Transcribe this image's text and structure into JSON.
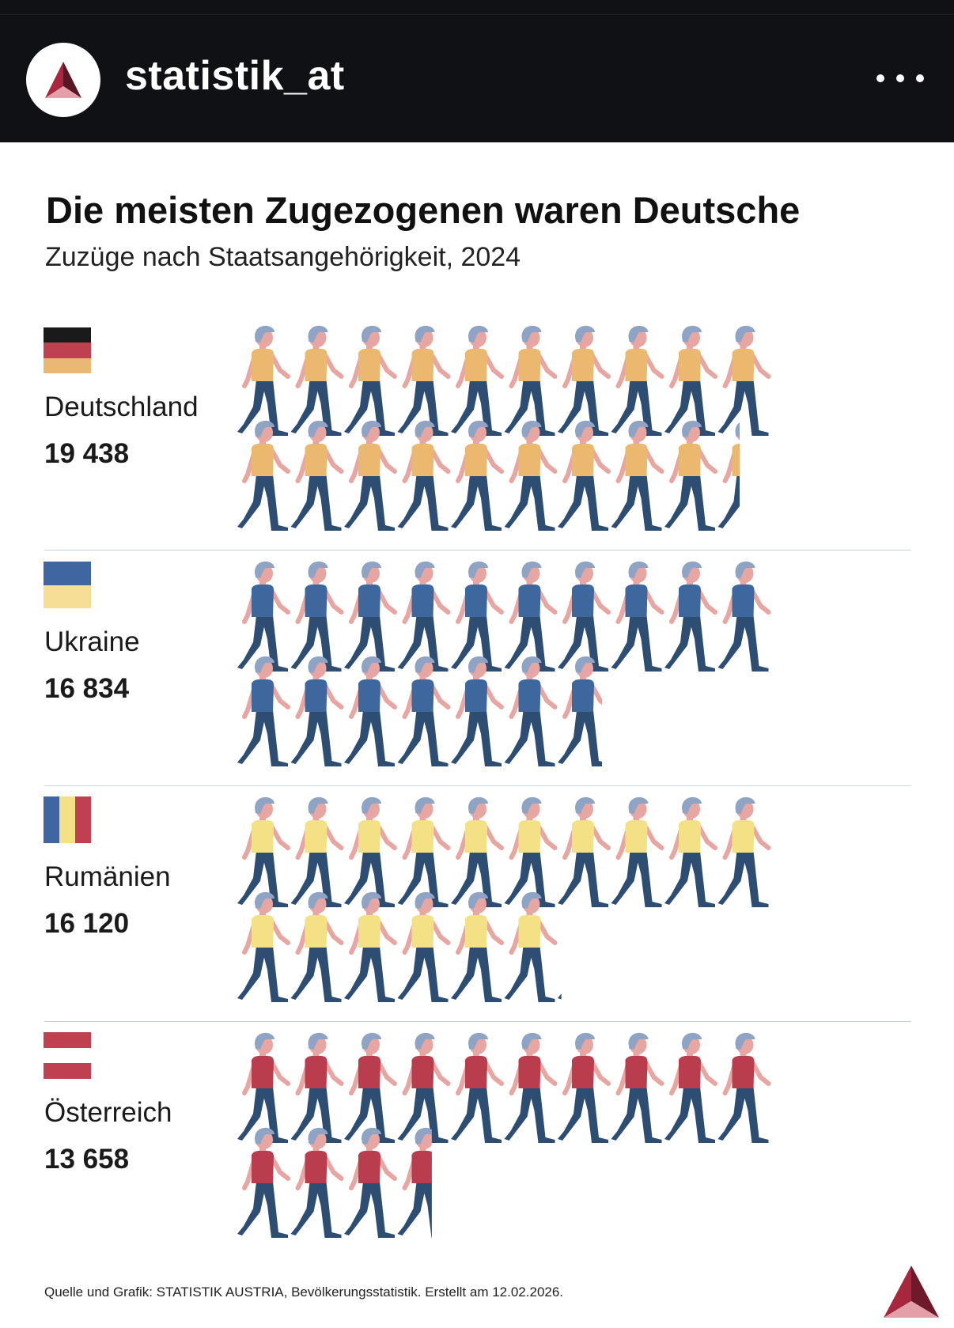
{
  "header": {
    "username": "statistik_at",
    "more_icon": "more-horizontal-icon",
    "avatar_icon": "statistik-austria-logo-icon"
  },
  "colors": {
    "pants": "#2e4d72",
    "skin": "#e8a6a3",
    "hair": "#8fa3c4",
    "accent_logo": "#a7283e"
  },
  "chart_data": {
    "type": "pictogram",
    "title": "Die meisten Zugezogenen waren Deutsche",
    "subtitle": "Zuzüge nach Staatsangehörigkeit, 2024",
    "unit_per_icon": 1000,
    "categories": [
      "Deutschland",
      "Ukraine",
      "Rumänien",
      "Österreich"
    ],
    "values": [
      19438,
      16834,
      16120,
      13658
    ],
    "series": [
      {
        "name": "Deutschland",
        "label": "19 438",
        "value": 19438,
        "shirt": "#ebb870",
        "flag": [
          "#1a1a1a",
          "#bf4150",
          "#e9b875"
        ],
        "flag_orientation": "horizontal"
      },
      {
        "name": "Ukraine",
        "label": "16 834",
        "value": 16834,
        "shirt": "#3e679e",
        "flag": [
          "#3f66a0",
          "#f6df95"
        ],
        "flag_orientation": "horizontal"
      },
      {
        "name": "Rumänien",
        "label": "16 120",
        "value": 16120,
        "shirt": "#f5e185",
        "flag": [
          "#3f66a0",
          "#f5e185",
          "#c0404f"
        ],
        "flag_orientation": "vertical"
      },
      {
        "name": "Österreich",
        "label": "13 658",
        "value": 13658,
        "shirt": "#b93d4d",
        "flag": [
          "#bf4150",
          "#ffffff",
          "#bf4150"
        ],
        "flag_orientation": "horizontal"
      }
    ]
  },
  "footer": {
    "source": "Quelle und Grafik: STATISTIK AUSTRIA, Bevölkerungsstatistik. Erstellt am 12.02.2026.",
    "logo_icon": "statistik-austria-logo-icon"
  }
}
